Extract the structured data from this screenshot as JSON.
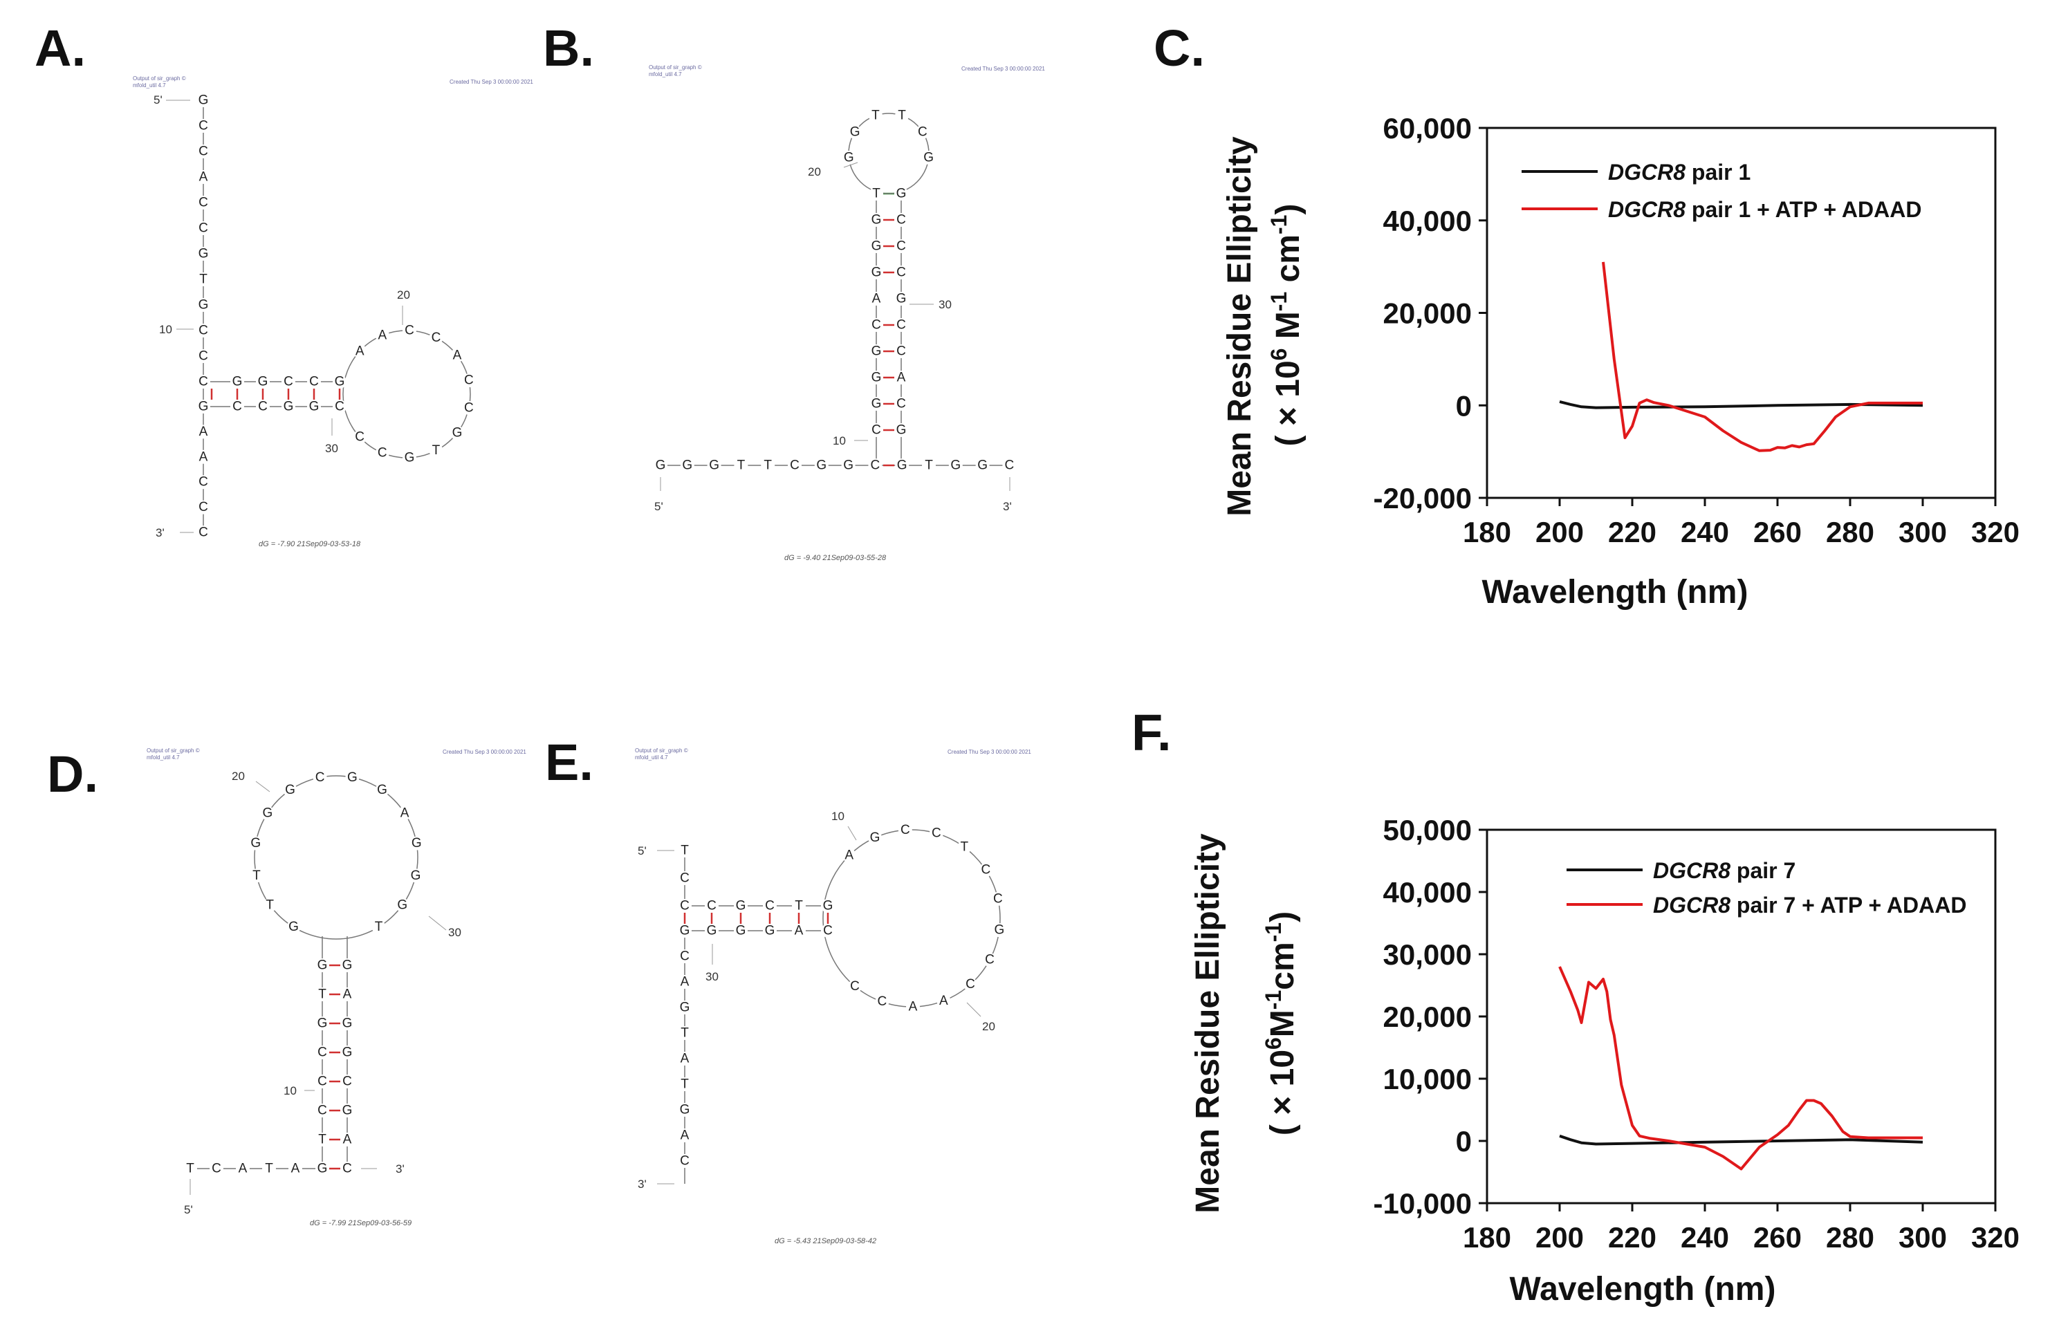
{
  "panels": [
    {
      "id": "A",
      "label": "A."
    },
    {
      "id": "B",
      "label": "B."
    },
    {
      "id": "C",
      "label": "C."
    },
    {
      "id": "D",
      "label": "D."
    },
    {
      "id": "E",
      "label": "E."
    },
    {
      "id": "F",
      "label": "F."
    }
  ],
  "structures": {
    "A": {
      "five_prime": "5'",
      "three_prime": "3'",
      "stem_top": [
        "G",
        "C",
        "C",
        "A",
        "C",
        "C",
        "G",
        "T",
        "G",
        "C",
        "C",
        "C"
      ],
      "stem_bottom": [
        "G",
        "A",
        "A",
        "C",
        "C",
        "C"
      ],
      "helix_upper": [
        "G",
        "G",
        "C",
        "C",
        "G"
      ],
      "helix_lower": [
        "C",
        "C",
        "G",
        "G",
        "C"
      ],
      "loop": [
        "A",
        "A",
        "C",
        "C",
        "A",
        "C",
        "C",
        "G",
        "T",
        "G",
        "C",
        "C"
      ],
      "num_10": "10",
      "num_20": "20",
      "num_30": "30",
      "dg": "dG = -7.90 21Sep09-03-53-18",
      "header_left": "Output of sir_graph ©",
      "header_left2": "mfold_util 4.7",
      "header_right": "Created Thu Sep 3 00:00:00 2021"
    },
    "B": {
      "five_prime": "5'",
      "three_prime": "3'",
      "baseline": [
        "G",
        "G",
        "G",
        "T",
        "T",
        "C",
        "G",
        "G",
        "C",
        "G",
        "T",
        "G",
        "G",
        "C"
      ],
      "stem_left": [
        "T",
        "G",
        "G",
        "G",
        "A",
        "C",
        "G",
        "G",
        "G",
        "C"
      ],
      "stem_right": [
        "G",
        "C",
        "C",
        "C",
        "G",
        "C",
        "C",
        "A",
        "C",
        "G"
      ],
      "loop": [
        "G",
        "G",
        "T",
        "T",
        "C",
        "G"
      ],
      "num_10": "10",
      "num_20": "20",
      "num_30": "30",
      "dg": "dG = -9.40 21Sep09-03-55-28",
      "header_left": "Output of sir_graph ©",
      "header_left2": "mfold_util 4.7",
      "header_right": "Created Thu Sep 3 00:00:00 2021"
    },
    "D": {
      "five_prime": "5'",
      "three_prime": "3'",
      "tail": [
        "T",
        "C",
        "A",
        "T",
        "A"
      ],
      "stem_left": [
        "G",
        "T",
        "C",
        "C",
        "C",
        "G",
        "T",
        "G"
      ],
      "stem_right": [
        "C",
        "A",
        "G",
        "C",
        "G",
        "G",
        "A",
        "G"
      ],
      "loop": [
        "G",
        "T",
        "T",
        "G",
        "G",
        "G",
        "C",
        "G",
        "G",
        "A",
        "G",
        "G",
        "G",
        "T"
      ],
      "num_10": "10",
      "num_20": "20",
      "num_30": "30",
      "dg": "dG = -7.99 21Sep09-03-56-59",
      "header_left": "Output of sir_graph ©",
      "header_left2": "mfold_util 4.7",
      "header_right": "Created Thu Sep 3 00:00:00 2021"
    },
    "E": {
      "five_prime": "5'",
      "three_prime": "3'",
      "stem_top": [
        "T",
        "C",
        "C"
      ],
      "stem_bottom": [
        "G",
        "C",
        "A",
        "G",
        "T",
        "A",
        "T",
        "G",
        "A",
        "C"
      ],
      "helix_upper": [
        "C",
        "G",
        "C",
        "T",
        "G"
      ],
      "helix_lower": [
        "G",
        "G",
        "G",
        "A",
        "C"
      ],
      "loop": [
        "A",
        "G",
        "C",
        "C",
        "T",
        "C",
        "C",
        "G",
        "C",
        "C",
        "A",
        "A",
        "C",
        "C"
      ],
      "num_10": "10",
      "num_20": "20",
      "num_30": "30",
      "dg": "dG = -5.43 21Sep09-03-58-42",
      "header_left": "Output of sir_graph ©",
      "header_left2": "mfold_util 4.7",
      "header_right": "Created Thu Sep 3 00:00:00 2021"
    }
  },
  "chart_data": [
    {
      "panel": "C",
      "type": "line",
      "xlabel": "Wavelength (nm)",
      "ylabel_line1": "Mean Residue Ellipticity",
      "ylabel_line2_parts": [
        "( × 10",
        "6",
        "  M",
        "-1",
        " cm",
        "-1",
        ")"
      ],
      "xlim": [
        180,
        320
      ],
      "ylim": [
        -20000,
        60000
      ],
      "xticks": [
        "180",
        "200",
        "220",
        "240",
        "260",
        "280",
        "300",
        "320"
      ],
      "yticks": [
        "-20,000",
        "0",
        "20,000",
        "40,000",
        "60,000"
      ],
      "legend": [
        {
          "gene": "DGCR8",
          "rest": " pair 1",
          "color": "#111111"
        },
        {
          "gene": "DGCR8",
          "rest": " pair 1 + ATP + ADAAD",
          "color": "#e0191b"
        }
      ],
      "series": [
        {
          "name": "DGCR8 pair 1",
          "color": "#111111",
          "x": [
            200,
            203,
            206,
            210,
            220,
            240,
            260,
            280,
            300
          ],
          "y": [
            800,
            200,
            -300,
            -500,
            -400,
            -300,
            0,
            200,
            0
          ]
        },
        {
          "name": "DGCR8 pair 1 + ATP + ADAAD",
          "color": "#e0191b",
          "x": [
            212,
            215,
            218,
            220,
            222,
            224,
            226,
            230,
            240,
            245,
            250,
            255,
            258,
            260,
            262,
            264,
            266,
            268,
            270,
            273,
            276,
            280,
            285,
            290,
            300
          ],
          "y": [
            31000,
            10000,
            -7000,
            -4500,
            500,
            1200,
            600,
            0,
            -2500,
            -5500,
            -8000,
            -9800,
            -9700,
            -9100,
            -9200,
            -8700,
            -9000,
            -8500,
            -8300,
            -5500,
            -2500,
            -300,
            500,
            500,
            500
          ]
        }
      ]
    },
    {
      "panel": "F",
      "type": "line",
      "xlabel": "Wavelength (nm)",
      "ylabel_line1": "Mean Residue Ellipticity",
      "ylabel_line2_parts": [
        "( × 10",
        "6",
        "M",
        "-1",
        "cm",
        "-1",
        ")"
      ],
      "xlim": [
        180,
        320
      ],
      "ylim": [
        -10000,
        50000
      ],
      "xticks": [
        "180",
        "200",
        "220",
        "240",
        "260",
        "280",
        "300",
        "320"
      ],
      "yticks": [
        "-10,000",
        "0",
        "10,000",
        "20,000",
        "30,000",
        "40,000",
        "50,000"
      ],
      "legend": [
        {
          "gene": "DGCR8",
          "rest": " pair 7",
          "color": "#111111"
        },
        {
          "gene": "DGCR8",
          "rest": " pair 7 + ATP + ADAAD",
          "color": "#e0191b"
        }
      ],
      "series": [
        {
          "name": "DGCR8 pair 7",
          "color": "#111111",
          "x": [
            200,
            203,
            206,
            210,
            220,
            240,
            260,
            280,
            300
          ],
          "y": [
            800,
            200,
            -300,
            -500,
            -400,
            -200,
            0,
            200,
            -200
          ]
        },
        {
          "name": "DGCR8 pair 7 + ATP + ADAAD",
          "color": "#e0191b",
          "x": [
            200,
            203,
            205,
            206,
            208,
            210,
            212,
            213,
            214,
            215,
            217,
            220,
            222,
            225,
            230,
            240,
            245,
            250,
            255,
            260,
            263,
            266,
            268,
            270,
            272,
            275,
            278,
            280,
            285,
            290,
            300
          ],
          "y": [
            28000,
            24000,
            21000,
            19000,
            25500,
            24500,
            26000,
            24000,
            19500,
            17000,
            9000,
            2500,
            800,
            400,
            0,
            -1000,
            -2500,
            -4500,
            -1000,
            1000,
            2500,
            5000,
            6500,
            6500,
            6000,
            4000,
            1500,
            700,
            500,
            500,
            500
          ]
        }
      ]
    }
  ]
}
